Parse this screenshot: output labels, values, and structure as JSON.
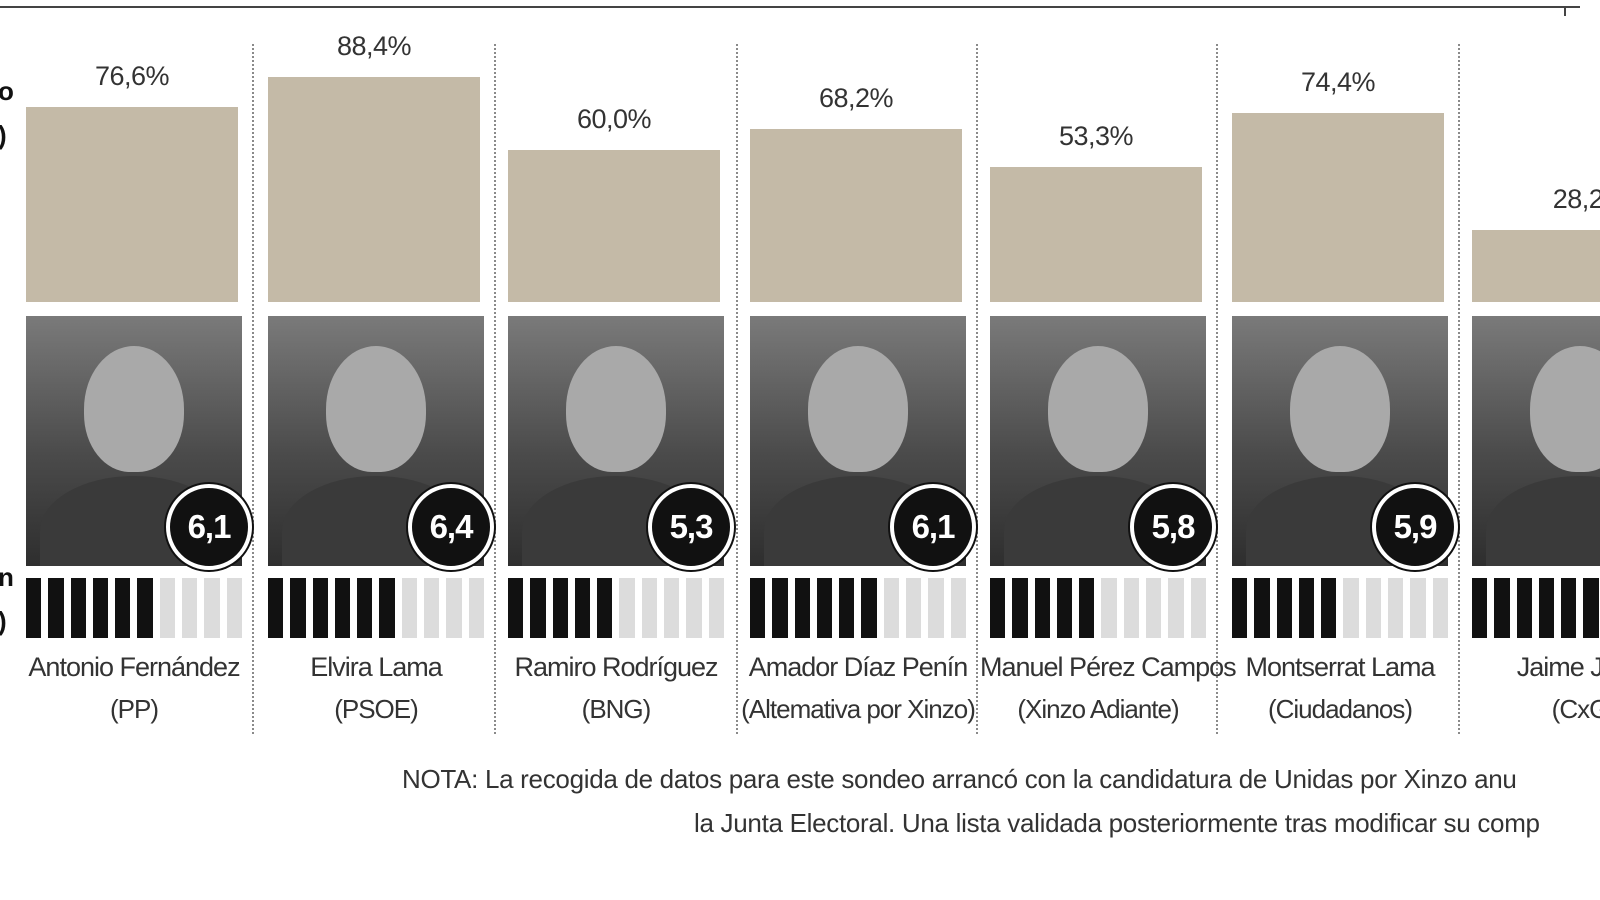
{
  "left_fragments": [
    "o",
    ")",
    "n",
    ")"
  ],
  "chart_data": {
    "type": "bar",
    "categories": [
      "Antonio Fernández (PP)",
      "Elvira Lama (PSOE)",
      "Ramiro Rodríguez (BNG)",
      "Amador Díaz Penín (Altemativa por Xinzo)",
      "Manuel Pérez Campos (Xinzo Adiante)",
      "Montserrat Lama (Ciudadanos)",
      "Jaime José (CxG"
    ],
    "series": [
      {
        "values": [
          76.6,
          88.4,
          60.0,
          68.2,
          53.3,
          74.4,
          28.2
        ],
        "labels": [
          "76,6%",
          "88,4%",
          "60,0%",
          "68,2%",
          "53,3%",
          "74,4%",
          "28,2"
        ]
      },
      {
        "values": [
          6.1,
          6.4,
          5.3,
          6.1,
          5.8,
          5.9,
          null
        ],
        "labels": [
          "6,1",
          "6,4",
          "5,3",
          "6,1",
          "5,8",
          "5,9",
          ""
        ]
      }
    ],
    "ylim": [
      0,
      100
    ],
    "scale_max": 10,
    "candidates": [
      {
        "name": "Antonio Fernández",
        "party": "(PP)",
        "pct": "76,6%",
        "score": "6,1"
      },
      {
        "name": "Elvira Lama",
        "party": "(PSOE)",
        "pct": "88,4%",
        "score": "6,4"
      },
      {
        "name": "Ramiro Rodríguez",
        "party": "(BNG)",
        "pct": "60,0%",
        "score": "5,3"
      },
      {
        "name": "Amador Díaz Penín",
        "party": "(Altemativa por Xinzo)",
        "pct": "68,2%",
        "score": "6,1"
      },
      {
        "name": "Manuel Pérez Campos",
        "party": "(Xinzo Adiante)",
        "pct": "53,3%",
        "score": "5,8"
      },
      {
        "name": "Montserrat Lama",
        "party": "(Ciudadanos)",
        "pct": "74,4%",
        "score": "5,9"
      },
      {
        "name": "Jaime José",
        "party": "(CxG",
        "pct": "28,2",
        "score": ""
      }
    ]
  },
  "note": {
    "line1": "NOTA: La recogida de datos para este sondeo arrancó con la candidatura de Unidas por Xinzo anu",
    "line2": "la Junta Electoral. Una lista validada posteriormente tras modificar su comp"
  },
  "colors": {
    "bar": "#c4baa7",
    "scale_on": "#111111",
    "scale_off": "#dcdcdc",
    "score_badge": "#111111"
  }
}
